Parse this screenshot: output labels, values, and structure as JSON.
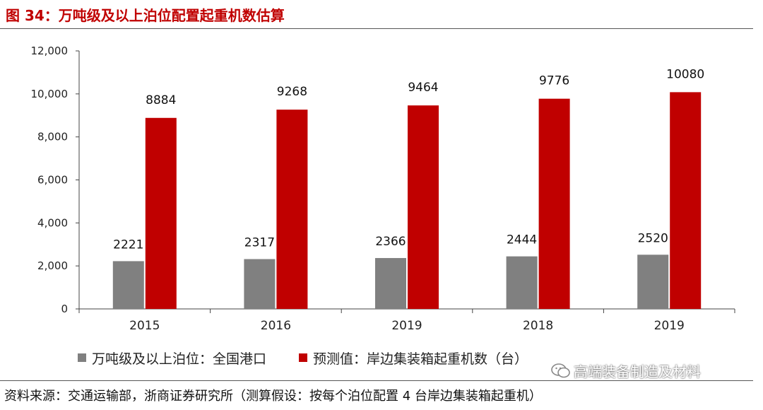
{
  "figure": {
    "title": "图 34：万吨级及以上泊位配置起重机数估算"
  },
  "chart_data": {
    "type": "bar",
    "categories": [
      "2015",
      "2016",
      "2019",
      "2018",
      "2019"
    ],
    "series": [
      {
        "name": "万吨级及以上泊位：全国港口",
        "color": "#808080",
        "values": [
          2221,
          2317,
          2366,
          2444,
          2520
        ]
      },
      {
        "name": "预测值：岸边集装箱起重机数（台）",
        "color": "#c00000",
        "values": [
          8884,
          9268,
          9464,
          9776,
          10080
        ]
      }
    ],
    "ylim": [
      0,
      12000
    ],
    "yticks": [
      0,
      2000,
      4000,
      6000,
      8000,
      10000,
      12000
    ],
    "ytick_labels": [
      "0",
      "2,000",
      "4,000",
      "6,000",
      "8,000",
      "10,000",
      "12,000"
    ],
    "data_labels": true,
    "legend_position": "bottom",
    "grid": false
  },
  "source": "资料来源：交通运输部，浙商证券研究所（测算假设：按每个泊位配置 4 台岸边集装箱起重机）",
  "watermark": {
    "text": "高端装备制造及材料",
    "icon": "wechat-icon"
  }
}
